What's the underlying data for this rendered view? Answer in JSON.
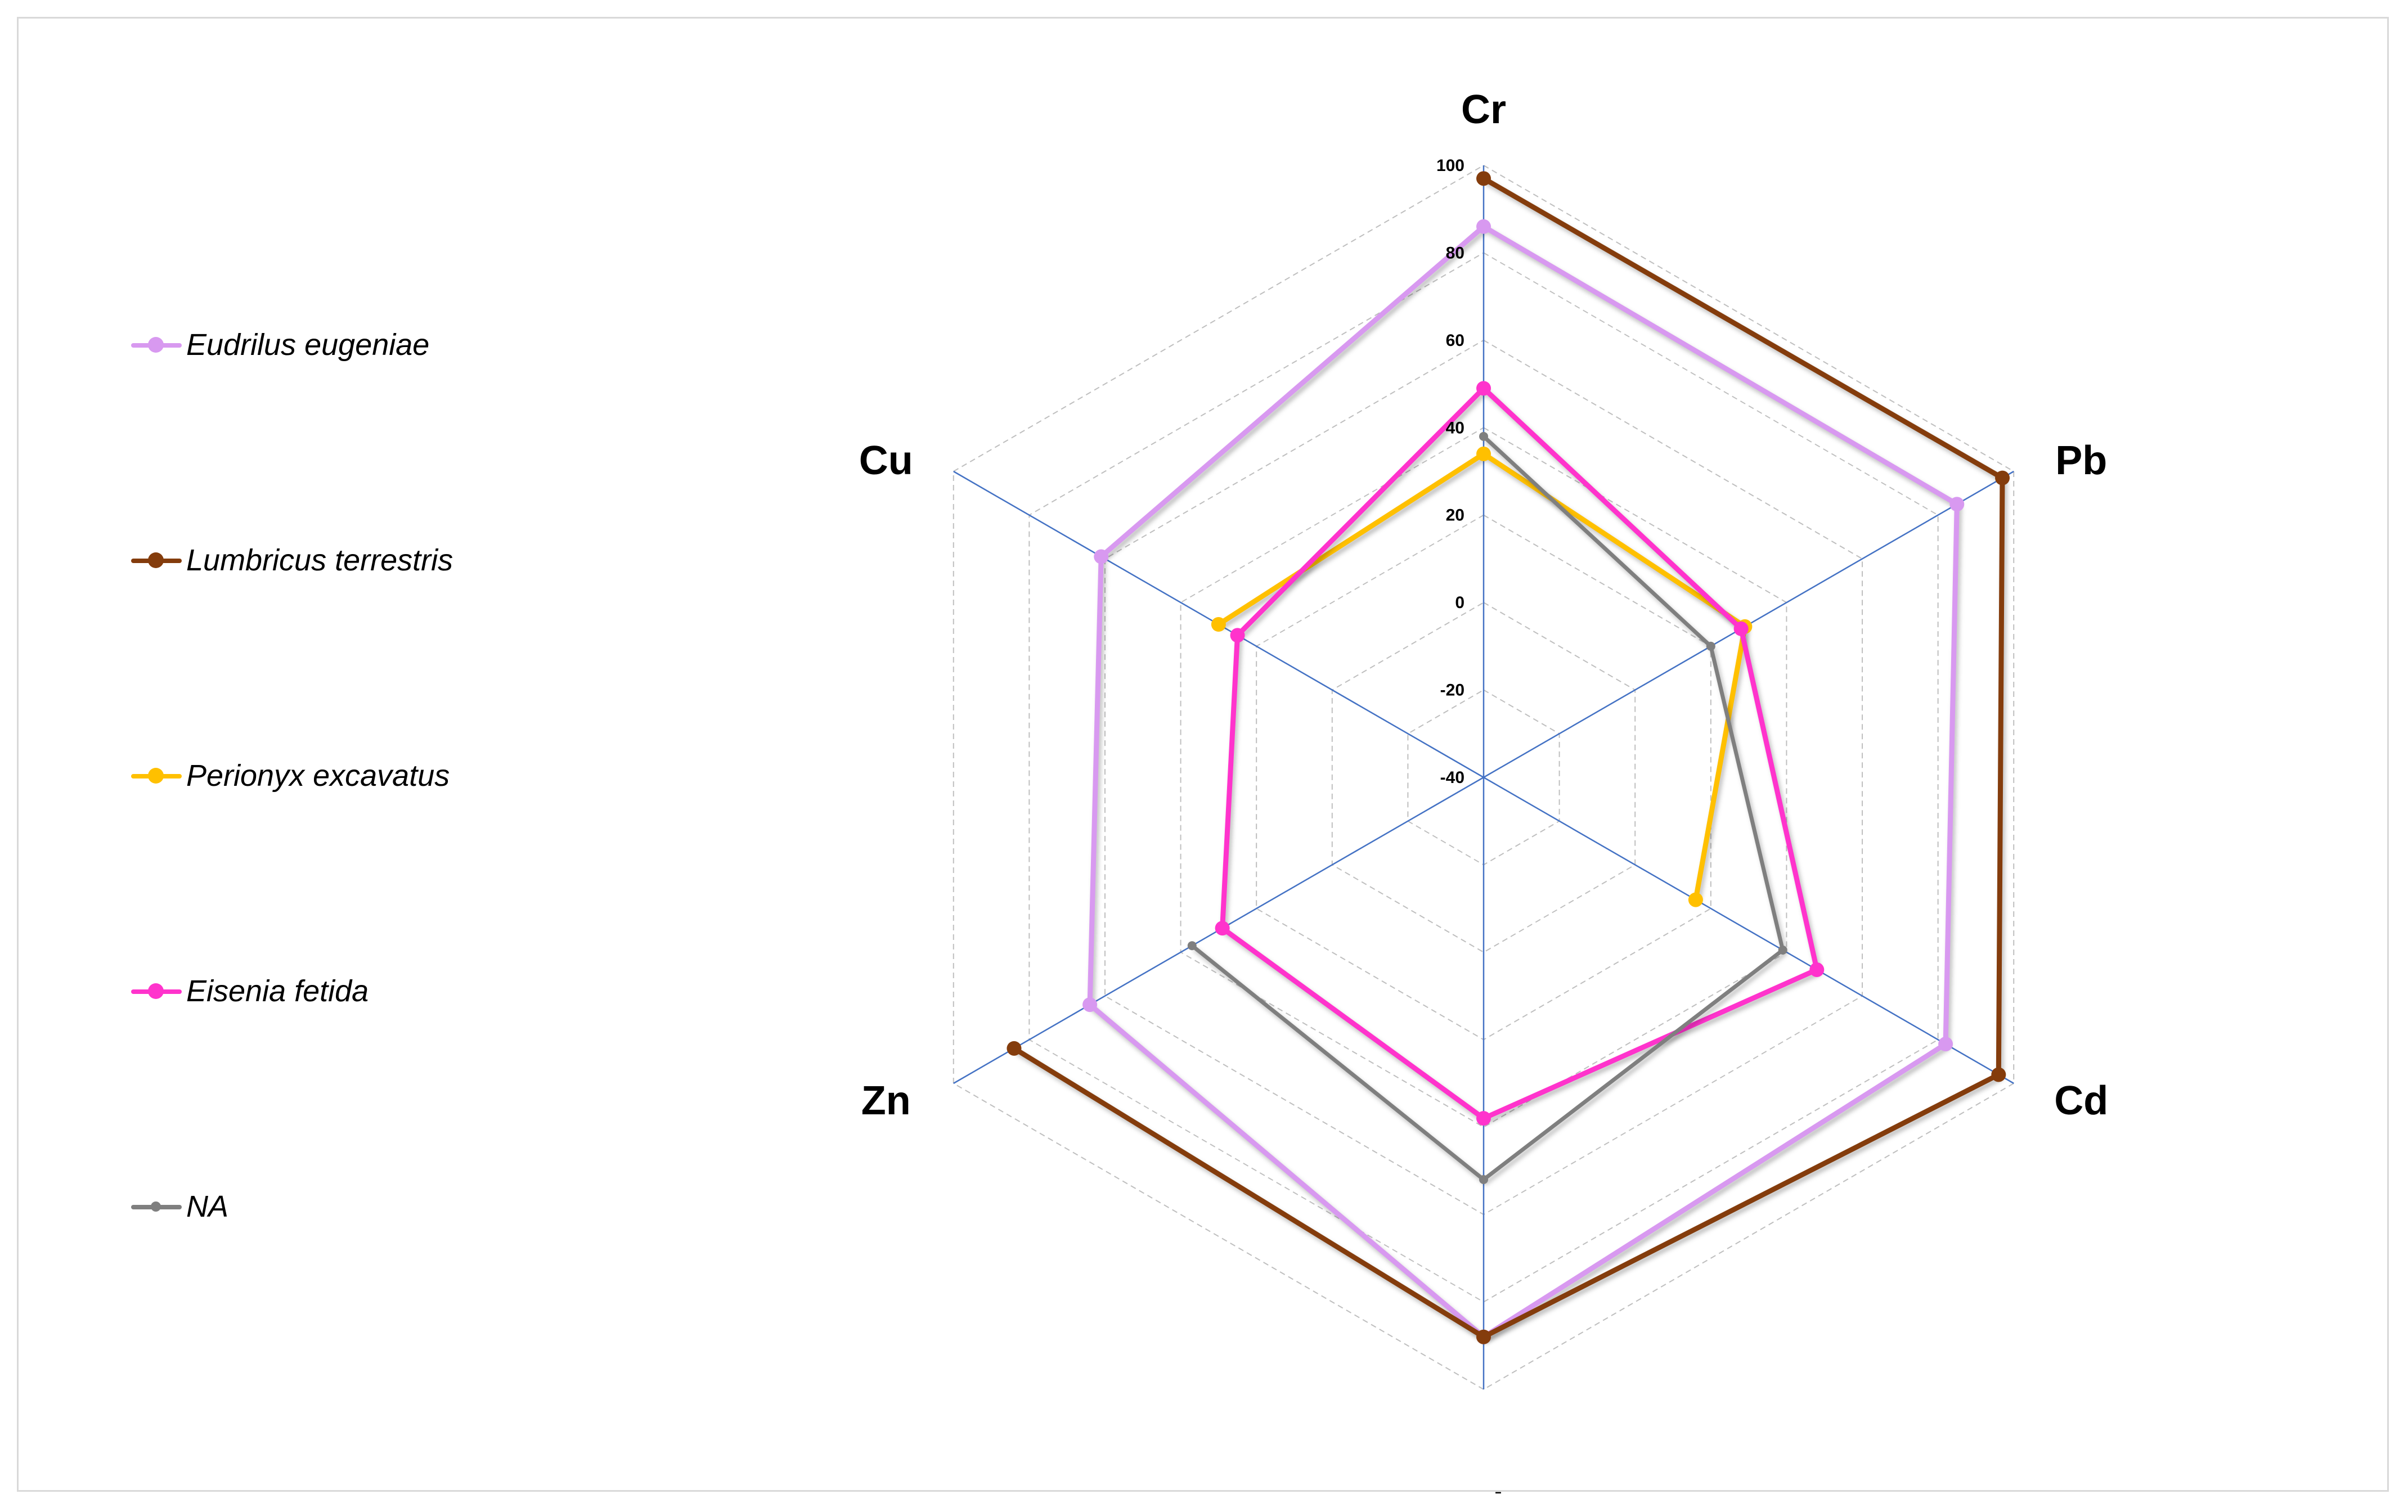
{
  "colors": {
    "frame": "#d9d9d9",
    "axis": "#4472c4",
    "grid": "#bfbfbf"
  },
  "chart_data": {
    "type": "radar",
    "axes": [
      "Cr",
      "Pb",
      "Cd",
      "Ni",
      "Zn",
      "Cu"
    ],
    "ticks": [
      "100",
      "80",
      "60",
      "40",
      "20",
      "0",
      "-20",
      "-40"
    ],
    "range": [
      -40,
      100
    ],
    "grid": "dashed",
    "legend_position": "left",
    "series": [
      {
        "name": "Eudrilus eugeniae",
        "color": "#d899f0",
        "values": [
          86,
          85,
          82,
          88,
          64,
          61
        ]
      },
      {
        "name": "Lumbricus terrestris",
        "color": "#843c0c",
        "values": [
          97,
          97,
          96,
          88,
          84,
          null
        ]
      },
      {
        "name": "Perionyx excavatus",
        "color": "#ffc000",
        "values": [
          34,
          29,
          16,
          null,
          null,
          30
        ]
      },
      {
        "name": "Eisenia fetida",
        "color": "#ff33cc",
        "values": [
          49,
          28,
          48,
          38,
          29,
          25
        ]
      },
      {
        "name": "NA",
        "color": "#7f7f7f",
        "values": [
          38,
          20,
          39,
          52,
          37,
          null
        ]
      }
    ]
  }
}
